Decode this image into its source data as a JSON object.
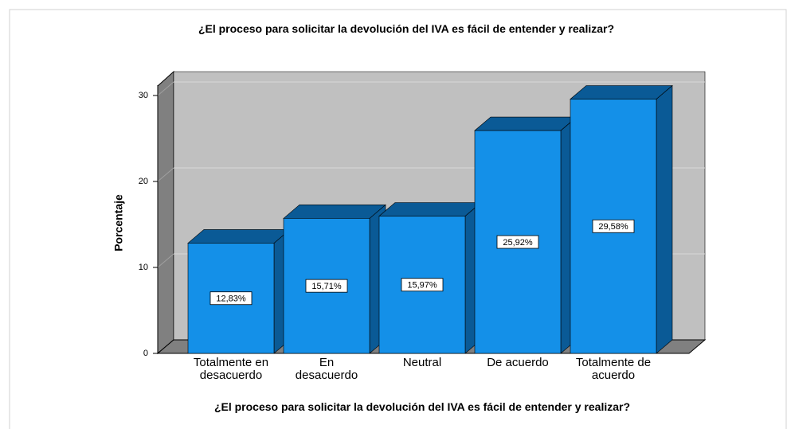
{
  "chart_data": {
    "type": "bar3d",
    "title": "¿El proceso para solicitar la devolución del IVA es fácil de entender y realizar?",
    "xlabel": "¿El proceso para solicitar la devolución del IVA es fácil de entender y realizar?",
    "ylabel": "Porcentaje",
    "categories": [
      "Totalmente en desacuerdo",
      "En desacuerdo",
      "Neutral",
      "De acuerdo",
      "Totalmente de acuerdo"
    ],
    "values": [
      12.83,
      15.71,
      15.97,
      25.92,
      29.58
    ],
    "value_labels": [
      "12,83%",
      "15,71%",
      "15,97%",
      "25,92%",
      "29,58%"
    ],
    "color": "#1490e8",
    "ylim": [
      0,
      31.2
    ],
    "yticks": [
      0,
      10,
      20,
      30
    ],
    "grid": true
  }
}
